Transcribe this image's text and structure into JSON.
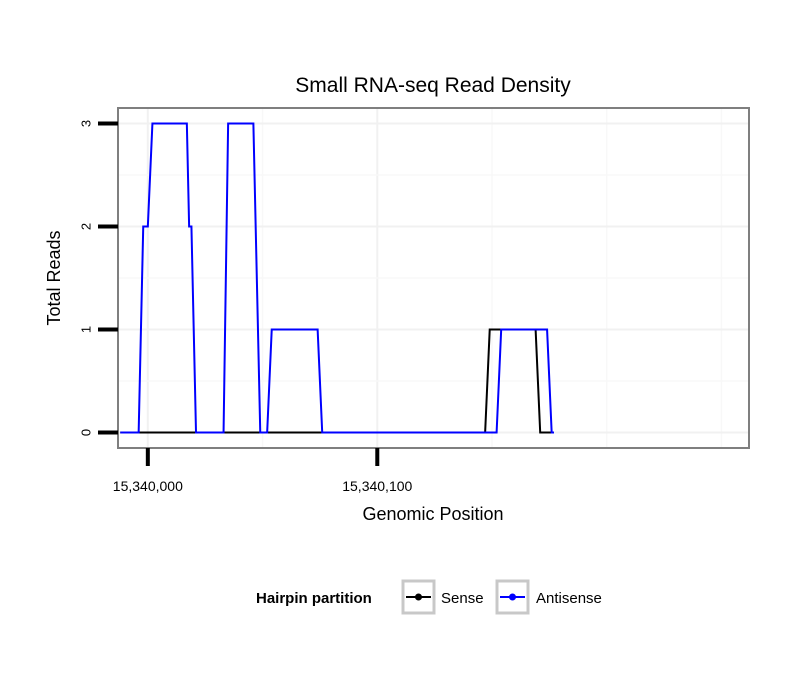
{
  "chart_data": {
    "type": "line",
    "title": "Small RNA-seq Read Density",
    "xlabel": "Genomic Position",
    "ylabel": "Total Reads",
    "xlim": [
      15339987,
      15340262
    ],
    "ylim": [
      -0.15,
      3.15
    ],
    "x_ticks": [
      {
        "value": 15340000,
        "label": "15,340,000"
      },
      {
        "value": 15340100,
        "label": "15,340,100"
      }
    ],
    "y_ticks": [
      {
        "value": 0,
        "label": "0"
      },
      {
        "value": 1,
        "label": "1"
      },
      {
        "value": 2,
        "label": "2"
      },
      {
        "value": 3,
        "label": "3"
      }
    ],
    "grid": true,
    "legend": {
      "title": "Hairpin partition",
      "position": "bottom"
    },
    "series": [
      {
        "name": "Sense",
        "color": "#000000",
        "x": [
          15339988,
          15340147,
          15340149,
          15340169,
          15340171,
          15340177
        ],
        "y": [
          0,
          0,
          1,
          1,
          0,
          0
        ]
      },
      {
        "name": "Antisense",
        "color": "#0000ff",
        "x": [
          15339988,
          15339996,
          15339998,
          15340000,
          15340002,
          15340017,
          15340018,
          15340019,
          15340020,
          15340021,
          15340033,
          15340035,
          15340046,
          15340049,
          15340052,
          15340054,
          15340074,
          15340076,
          15340152,
          15340154,
          15340174,
          15340176,
          15340177
        ],
        "y": [
          0,
          0,
          2,
          2,
          3,
          3,
          2,
          2,
          1,
          0,
          0,
          3,
          3,
          0,
          0,
          1,
          1,
          0,
          0,
          1,
          1,
          0,
          0
        ]
      }
    ]
  }
}
